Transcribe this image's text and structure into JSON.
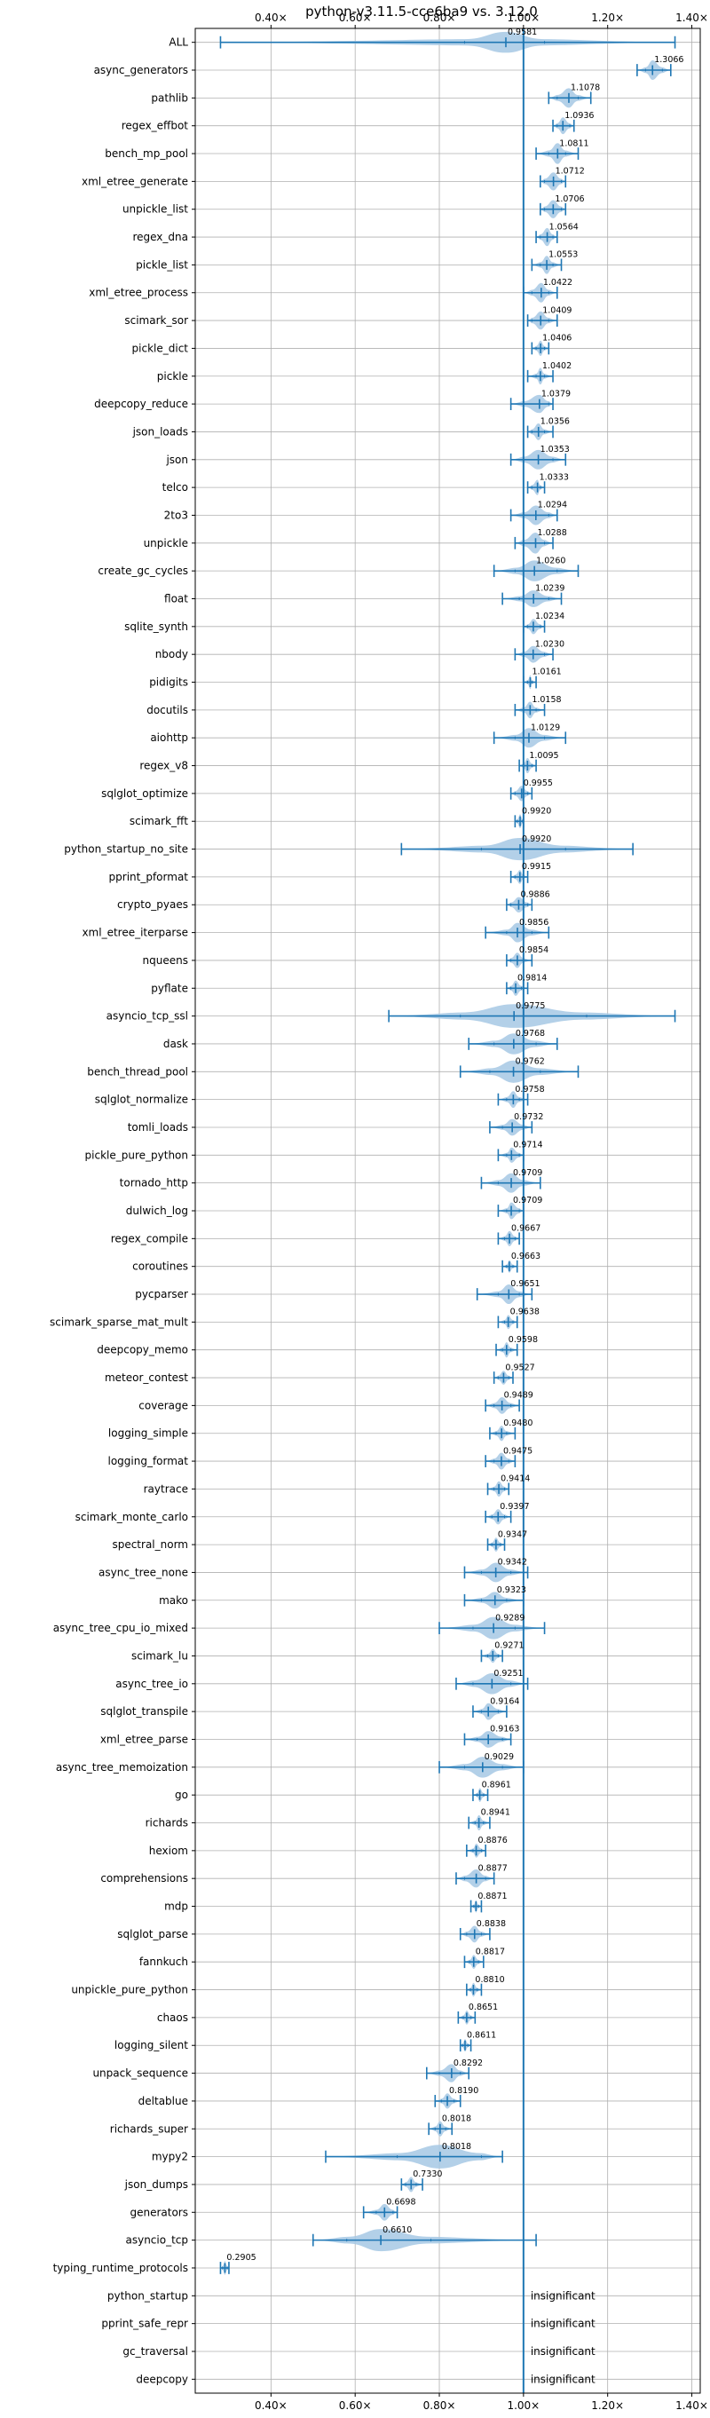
{
  "chart_data": {
    "type": "violin",
    "title": "python-v3.11.5-cce6ba9 vs. 3.12.0",
    "x_ticks": [
      {
        "value": 0.4,
        "label": "0.40×"
      },
      {
        "value": 0.6,
        "label": "0.60×"
      },
      {
        "value": 0.8,
        "label": "0.80×"
      },
      {
        "value": 1.0,
        "label": "1.00×"
      },
      {
        "value": 1.2,
        "label": "1.20×"
      },
      {
        "value": 1.4,
        "label": "1.40×"
      }
    ],
    "xlim": [
      0.22,
      1.42
    ],
    "reference_line": 1.0,
    "grid": true,
    "colors": {
      "violin": "#a6c8e4",
      "whisker": "#1f77b4",
      "reference": "#1f77b4",
      "grid": "#b0b0b0"
    },
    "benchmarks": [
      {
        "name": "ALL",
        "value": 0.9581,
        "label": "0.9581",
        "lo": 0.28,
        "hi": 1.36,
        "q1": 0.86,
        "q3": 1.05,
        "width": 0.75
      },
      {
        "name": "async_generators",
        "value": 1.3066,
        "label": "1.3066",
        "lo": 1.27,
        "hi": 1.35,
        "q1": 1.29,
        "q3": 1.33,
        "width": 0.7
      },
      {
        "name": "pathlib",
        "value": 1.1078,
        "label": "1.1078",
        "lo": 1.06,
        "hi": 1.16,
        "q1": 1.08,
        "q3": 1.13,
        "width": 0.7
      },
      {
        "name": "regex_effbot",
        "value": 1.0936,
        "label": "1.0936",
        "lo": 1.07,
        "hi": 1.12,
        "q1": 1.08,
        "q3": 1.11,
        "width": 0.6
      },
      {
        "name": "bench_mp_pool",
        "value": 1.0811,
        "label": "1.0811",
        "lo": 1.03,
        "hi": 1.13,
        "q1": 1.06,
        "q3": 1.1,
        "width": 0.75
      },
      {
        "name": "xml_etree_generate",
        "value": 1.0712,
        "label": "1.0712",
        "lo": 1.04,
        "hi": 1.1,
        "q1": 1.05,
        "q3": 1.09,
        "width": 0.65
      },
      {
        "name": "unpickle_list",
        "value": 1.0706,
        "label": "1.0706",
        "lo": 1.04,
        "hi": 1.1,
        "q1": 1.05,
        "q3": 1.09,
        "width": 0.65
      },
      {
        "name": "regex_dna",
        "value": 1.0564,
        "label": "1.0564",
        "lo": 1.03,
        "hi": 1.08,
        "q1": 1.04,
        "q3": 1.07,
        "width": 0.65
      },
      {
        "name": "pickle_list",
        "value": 1.0553,
        "label": "1.0553",
        "lo": 1.02,
        "hi": 1.09,
        "q1": 1.04,
        "q3": 1.07,
        "width": 0.65
      },
      {
        "name": "xml_etree_process",
        "value": 1.0422,
        "label": "1.0422",
        "lo": 1.0,
        "hi": 1.08,
        "q1": 1.02,
        "q3": 1.06,
        "width": 0.7
      },
      {
        "name": "scimark_sor",
        "value": 1.0409,
        "label": "1.0409",
        "lo": 1.01,
        "hi": 1.08,
        "q1": 1.02,
        "q3": 1.06,
        "width": 0.65
      },
      {
        "name": "pickle_dict",
        "value": 1.0406,
        "label": "1.0406",
        "lo": 1.02,
        "hi": 1.06,
        "q1": 1.03,
        "q3": 1.05,
        "width": 0.55
      },
      {
        "name": "pickle",
        "value": 1.0402,
        "label": "1.0402",
        "lo": 1.01,
        "hi": 1.07,
        "q1": 1.03,
        "q3": 1.05,
        "width": 0.6
      },
      {
        "name": "deepcopy_reduce",
        "value": 1.0379,
        "label": "1.0379",
        "lo": 0.97,
        "hi": 1.07,
        "q1": 1.0,
        "q3": 1.06,
        "width": 0.65
      },
      {
        "name": "json_loads",
        "value": 1.0356,
        "label": "1.0356",
        "lo": 1.01,
        "hi": 1.07,
        "q1": 1.02,
        "q3": 1.05,
        "width": 0.6
      },
      {
        "name": "json",
        "value": 1.0353,
        "label": "1.0353",
        "lo": 0.97,
        "hi": 1.1,
        "q1": 1.0,
        "q3": 1.07,
        "width": 0.7
      },
      {
        "name": "telco",
        "value": 1.0333,
        "label": "1.0333",
        "lo": 1.01,
        "hi": 1.05,
        "q1": 1.02,
        "q3": 1.04,
        "width": 0.55
      },
      {
        "name": "2to3",
        "value": 1.0294,
        "label": "1.0294",
        "lo": 0.97,
        "hi": 1.08,
        "q1": 1.0,
        "q3": 1.06,
        "width": 0.7
      },
      {
        "name": "unpickle",
        "value": 1.0288,
        "label": "1.0288",
        "lo": 0.98,
        "hi": 1.07,
        "q1": 1.0,
        "q3": 1.05,
        "width": 0.75
      },
      {
        "name": "create_gc_cycles",
        "value": 1.026,
        "label": "1.0260",
        "lo": 0.93,
        "hi": 1.13,
        "q1": 0.98,
        "q3": 1.08,
        "width": 0.75
      },
      {
        "name": "float",
        "value": 1.0239,
        "label": "1.0239",
        "lo": 0.95,
        "hi": 1.09,
        "q1": 0.99,
        "q3": 1.06,
        "width": 0.6
      },
      {
        "name": "sqlite_synth",
        "value": 1.0234,
        "label": "1.0234",
        "lo": 1.0,
        "hi": 1.05,
        "q1": 1.01,
        "q3": 1.04,
        "width": 0.55
      },
      {
        "name": "nbody",
        "value": 1.023,
        "label": "1.0230",
        "lo": 0.98,
        "hi": 1.07,
        "q1": 1.0,
        "q3": 1.05,
        "width": 0.6
      },
      {
        "name": "pidigits",
        "value": 1.0161,
        "label": "1.0161",
        "lo": 1.0,
        "hi": 1.03,
        "q1": 1.01,
        "q3": 1.02,
        "width": 0.5
      },
      {
        "name": "docutils",
        "value": 1.0158,
        "label": "1.0158",
        "lo": 0.98,
        "hi": 1.05,
        "q1": 1.0,
        "q3": 1.03,
        "width": 0.6
      },
      {
        "name": "aiohttp",
        "value": 1.0129,
        "label": "1.0129",
        "lo": 0.93,
        "hi": 1.1,
        "q1": 0.98,
        "q3": 1.05,
        "width": 0.7
      },
      {
        "name": "regex_v8",
        "value": 1.0095,
        "label": "1.0095",
        "lo": 0.99,
        "hi": 1.03,
        "q1": 1.0,
        "q3": 1.02,
        "width": 0.55
      },
      {
        "name": "sqlglot_optimize",
        "value": 0.9955,
        "label": "0.9955",
        "lo": 0.97,
        "hi": 1.02,
        "q1": 0.98,
        "q3": 1.01,
        "width": 0.55
      },
      {
        "name": "scimark_fft",
        "value": 0.992,
        "label": "0.9920",
        "lo": 0.98,
        "hi": 1.0,
        "q1": 0.985,
        "q3": 0.998,
        "width": 0.5
      },
      {
        "name": "python_startup_no_site",
        "value": 0.992,
        "label": "0.9920",
        "lo": 0.71,
        "hi": 1.26,
        "q1": 0.9,
        "q3": 1.1,
        "width": 0.8
      },
      {
        "name": "pprint_pformat",
        "value": 0.9915,
        "label": "0.9915",
        "lo": 0.97,
        "hi": 1.01,
        "q1": 0.98,
        "q3": 1.0,
        "width": 0.5
      },
      {
        "name": "crypto_pyaes",
        "value": 0.9886,
        "label": "0.9886",
        "lo": 0.96,
        "hi": 1.02,
        "q1": 0.97,
        "q3": 1.01,
        "width": 0.55
      },
      {
        "name": "xml_etree_iterparse",
        "value": 0.9856,
        "label": "0.9856",
        "lo": 0.91,
        "hi": 1.06,
        "q1": 0.96,
        "q3": 1.02,
        "width": 0.7
      },
      {
        "name": "nqueens",
        "value": 0.9854,
        "label": "0.9854",
        "lo": 0.96,
        "hi": 1.02,
        "q1": 0.97,
        "q3": 1.0,
        "width": 0.55
      },
      {
        "name": "pyflate",
        "value": 0.9814,
        "label": "0.9814",
        "lo": 0.96,
        "hi": 1.01,
        "q1": 0.97,
        "q3": 0.995,
        "width": 0.55
      },
      {
        "name": "asyncio_tcp_ssl",
        "value": 0.9775,
        "label": "0.9775",
        "lo": 0.68,
        "hi": 1.36,
        "q1": 0.85,
        "q3": 1.15,
        "width": 0.85
      },
      {
        "name": "dask",
        "value": 0.9768,
        "label": "0.9768",
        "lo": 0.87,
        "hi": 1.08,
        "q1": 0.93,
        "q3": 1.03,
        "width": 0.75
      },
      {
        "name": "bench_thread_pool",
        "value": 0.9762,
        "label": "0.9762",
        "lo": 0.85,
        "hi": 1.13,
        "q1": 0.92,
        "q3": 1.04,
        "width": 0.8
      },
      {
        "name": "sqlglot_normalize",
        "value": 0.9758,
        "label": "0.9758",
        "lo": 0.94,
        "hi": 1.01,
        "q1": 0.96,
        "q3": 0.99,
        "width": 0.6
      },
      {
        "name": "tomli_loads",
        "value": 0.9732,
        "label": "0.9732",
        "lo": 0.92,
        "hi": 1.02,
        "q1": 0.95,
        "q3": 1.0,
        "width": 0.6
      },
      {
        "name": "pickle_pure_python",
        "value": 0.9714,
        "label": "0.9714",
        "lo": 0.94,
        "hi": 1.0,
        "q1": 0.96,
        "q3": 0.99,
        "width": 0.55
      },
      {
        "name": "tornado_http",
        "value": 0.9709,
        "label": "0.9709",
        "lo": 0.9,
        "hi": 1.04,
        "q1": 0.94,
        "q3": 1.0,
        "width": 0.7
      },
      {
        "name": "dulwich_log",
        "value": 0.9709,
        "label": "0.9709",
        "lo": 0.94,
        "hi": 1.0,
        "q1": 0.96,
        "q3": 0.99,
        "width": 0.6
      },
      {
        "name": "regex_compile",
        "value": 0.9667,
        "label": "0.9667",
        "lo": 0.94,
        "hi": 0.99,
        "q1": 0.955,
        "q3": 0.98,
        "width": 0.55
      },
      {
        "name": "coroutines",
        "value": 0.9663,
        "label": "0.9663",
        "lo": 0.95,
        "hi": 0.985,
        "q1": 0.96,
        "q3": 0.975,
        "width": 0.45
      },
      {
        "name": "pycparser",
        "value": 0.9651,
        "label": "0.9651",
        "lo": 0.89,
        "hi": 1.02,
        "q1": 0.94,
        "q3": 0.99,
        "width": 0.7
      },
      {
        "name": "scimark_sparse_mat_mult",
        "value": 0.9638,
        "label": "0.9638",
        "lo": 0.94,
        "hi": 0.985,
        "q1": 0.955,
        "q3": 0.975,
        "width": 0.5
      },
      {
        "name": "deepcopy_memo",
        "value": 0.9598,
        "label": "0.9598",
        "lo": 0.935,
        "hi": 0.985,
        "q1": 0.95,
        "q3": 0.97,
        "width": 0.55
      },
      {
        "name": "meteor_contest",
        "value": 0.9527,
        "label": "0.9527",
        "lo": 0.93,
        "hi": 0.975,
        "q1": 0.94,
        "q3": 0.965,
        "width": 0.5
      },
      {
        "name": "coverage",
        "value": 0.9489,
        "label": "0.9489",
        "lo": 0.91,
        "hi": 0.99,
        "q1": 0.93,
        "q3": 0.97,
        "width": 0.6
      },
      {
        "name": "logging_simple",
        "value": 0.948,
        "label": "0.9480",
        "lo": 0.92,
        "hi": 0.98,
        "q1": 0.935,
        "q3": 0.96,
        "width": 0.55
      },
      {
        "name": "logging_format",
        "value": 0.9475,
        "label": "0.9475",
        "lo": 0.91,
        "hi": 0.98,
        "q1": 0.93,
        "q3": 0.965,
        "width": 0.6
      },
      {
        "name": "raytrace",
        "value": 0.9414,
        "label": "0.9414",
        "lo": 0.915,
        "hi": 0.965,
        "q1": 0.93,
        "q3": 0.955,
        "width": 0.55
      },
      {
        "name": "scimark_monte_carlo",
        "value": 0.9397,
        "label": "0.9397",
        "lo": 0.91,
        "hi": 0.97,
        "q1": 0.925,
        "q3": 0.955,
        "width": 0.55
      },
      {
        "name": "spectral_norm",
        "value": 0.9347,
        "label": "0.9347",
        "lo": 0.915,
        "hi": 0.955,
        "q1": 0.925,
        "q3": 0.945,
        "width": 0.5
      },
      {
        "name": "async_tree_none",
        "value": 0.9342,
        "label": "0.9342",
        "lo": 0.86,
        "hi": 1.01,
        "q1": 0.9,
        "q3": 0.97,
        "width": 0.7
      },
      {
        "name": "mako",
        "value": 0.9323,
        "label": "0.9323",
        "lo": 0.86,
        "hi": 1.0,
        "q1": 0.9,
        "q3": 0.96,
        "width": 0.6
      },
      {
        "name": "async_tree_cpu_io_mixed",
        "value": 0.9289,
        "label": "0.9289",
        "lo": 0.8,
        "hi": 1.05,
        "q1": 0.88,
        "q3": 0.98,
        "width": 0.8
      },
      {
        "name": "scimark_lu",
        "value": 0.9271,
        "label": "0.9271",
        "lo": 0.9,
        "hi": 0.95,
        "q1": 0.915,
        "q3": 0.94,
        "width": 0.5
      },
      {
        "name": "async_tree_io",
        "value": 0.9251,
        "label": "0.9251",
        "lo": 0.84,
        "hi": 1.01,
        "q1": 0.88,
        "q3": 0.97,
        "width": 0.75
      },
      {
        "name": "sqlglot_transpile",
        "value": 0.9164,
        "label": "0.9164",
        "lo": 0.88,
        "hi": 0.96,
        "q1": 0.9,
        "q3": 0.94,
        "width": 0.6
      },
      {
        "name": "xml_etree_parse",
        "value": 0.9163,
        "label": "0.9163",
        "lo": 0.86,
        "hi": 0.97,
        "q1": 0.89,
        "q3": 0.95,
        "width": 0.6
      },
      {
        "name": "async_tree_memoization",
        "value": 0.9029,
        "label": "0.9029",
        "lo": 0.8,
        "hi": 1.0,
        "q1": 0.86,
        "q3": 0.95,
        "width": 0.75
      },
      {
        "name": "go",
        "value": 0.8961,
        "label": "0.8961",
        "lo": 0.88,
        "hi": 0.915,
        "q1": 0.89,
        "q3": 0.905,
        "width": 0.5
      },
      {
        "name": "richards",
        "value": 0.8941,
        "label": "0.8941",
        "lo": 0.87,
        "hi": 0.92,
        "q1": 0.885,
        "q3": 0.905,
        "width": 0.55
      },
      {
        "name": "hexiom",
        "value": 0.8876,
        "label": "0.8876",
        "lo": 0.865,
        "hi": 0.91,
        "q1": 0.88,
        "q3": 0.9,
        "width": 0.5
      },
      {
        "name": "comprehensions",
        "value": 0.8877,
        "label": "0.8877",
        "lo": 0.84,
        "hi": 0.93,
        "q1": 0.86,
        "q3": 0.91,
        "width": 0.65
      },
      {
        "name": "mdp",
        "value": 0.8871,
        "label": "0.8871",
        "lo": 0.875,
        "hi": 0.9,
        "q1": 0.882,
        "q3": 0.893,
        "width": 0.45
      },
      {
        "name": "sqlglot_parse",
        "value": 0.8838,
        "label": "0.8838",
        "lo": 0.85,
        "hi": 0.92,
        "q1": 0.865,
        "q3": 0.9,
        "width": 0.6
      },
      {
        "name": "fannkuch",
        "value": 0.8817,
        "label": "0.8817",
        "lo": 0.86,
        "hi": 0.905,
        "q1": 0.872,
        "q3": 0.893,
        "width": 0.5
      },
      {
        "name": "unpickle_pure_python",
        "value": 0.881,
        "label": "0.8810",
        "lo": 0.865,
        "hi": 0.9,
        "q1": 0.874,
        "q3": 0.89,
        "width": 0.5
      },
      {
        "name": "chaos",
        "value": 0.8651,
        "label": "0.8651",
        "lo": 0.845,
        "hi": 0.885,
        "q1": 0.857,
        "q3": 0.875,
        "width": 0.5
      },
      {
        "name": "logging_silent",
        "value": 0.8611,
        "label": "0.8611",
        "lo": 0.85,
        "hi": 0.875,
        "q1": 0.855,
        "q3": 0.868,
        "width": 0.45
      },
      {
        "name": "unpack_sequence",
        "value": 0.8292,
        "label": "0.8292",
        "lo": 0.77,
        "hi": 0.87,
        "q1": 0.8,
        "q3": 0.85,
        "width": 0.65
      },
      {
        "name": "deltablue",
        "value": 0.819,
        "label": "0.8190",
        "lo": 0.79,
        "hi": 0.85,
        "q1": 0.805,
        "q3": 0.835,
        "width": 0.55
      },
      {
        "name": "richards_super",
        "value": 0.8018,
        "label": "0.8018",
        "lo": 0.775,
        "hi": 0.83,
        "q1": 0.79,
        "q3": 0.815,
        "width": 0.55
      },
      {
        "name": "mypy2",
        "value": 0.8018,
        "label": "0.8018",
        "lo": 0.53,
        "hi": 0.95,
        "q1": 0.7,
        "q3": 0.9,
        "width": 0.85
      },
      {
        "name": "json_dumps",
        "value": 0.733,
        "label": "0.7330",
        "lo": 0.71,
        "hi": 0.76,
        "q1": 0.72,
        "q3": 0.745,
        "width": 0.55
      },
      {
        "name": "generators",
        "value": 0.6698,
        "label": "0.6698",
        "lo": 0.62,
        "hi": 0.7,
        "q1": 0.65,
        "q3": 0.69,
        "width": 0.6
      },
      {
        "name": "asyncio_tcp",
        "value": 0.661,
        "label": "0.6610",
        "lo": 0.5,
        "hi": 1.03,
        "q1": 0.58,
        "q3": 0.78,
        "width": 0.8
      },
      {
        "name": "typing_runtime_protocols",
        "value": 0.2905,
        "label": "0.2905",
        "lo": 0.28,
        "hi": 0.3,
        "q1": 0.285,
        "q3": 0.296,
        "width": 0.5
      },
      {
        "name": "python_startup",
        "insignificant": true,
        "label": "insignificant"
      },
      {
        "name": "pprint_safe_repr",
        "insignificant": true,
        "label": "insignificant"
      },
      {
        "name": "gc_traversal",
        "insignificant": true,
        "label": "insignificant"
      },
      {
        "name": "deepcopy",
        "insignificant": true,
        "label": "insignificant"
      }
    ]
  }
}
